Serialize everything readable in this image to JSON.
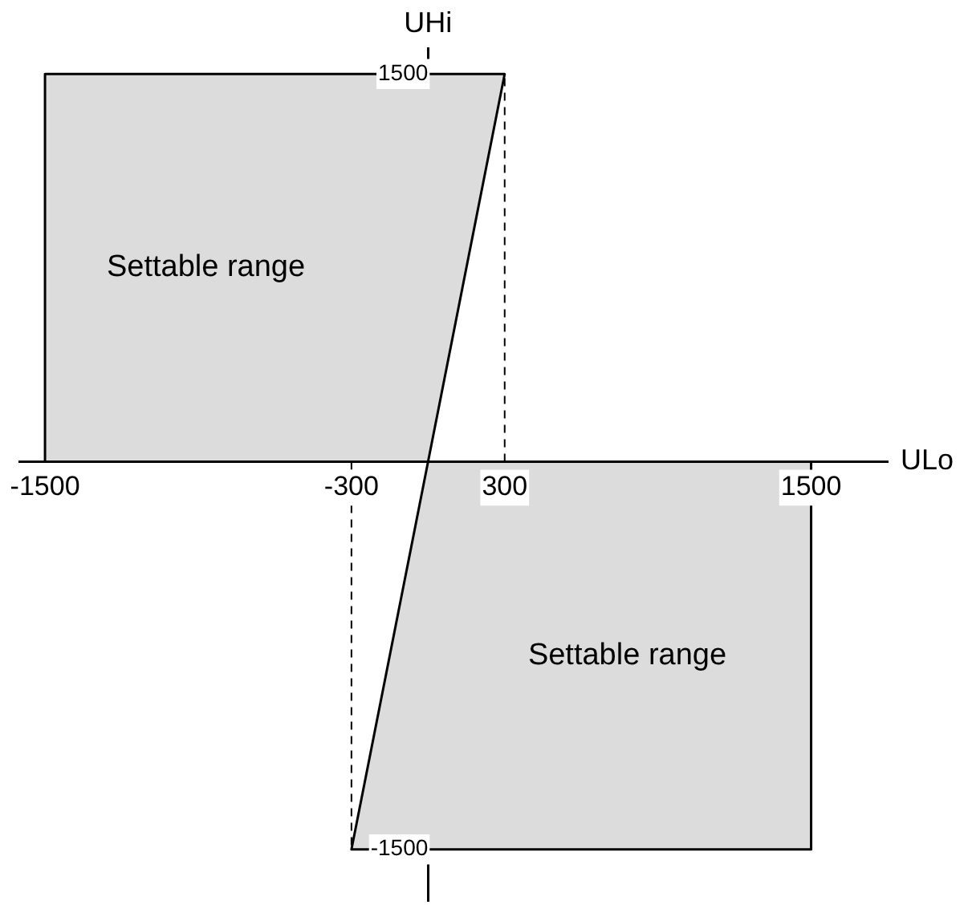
{
  "chart_data": {
    "type": "area",
    "xlabel": "ULo",
    "ylabel": "UHi",
    "xlim": [
      -1600,
      1800
    ],
    "ylim": [
      -1700,
      1600
    ],
    "xticks": [
      -1500,
      -300,
      300,
      1500
    ],
    "yticks": [
      -1500,
      1500
    ],
    "grid": false,
    "legend": false,
    "marker": "none",
    "series": [
      {
        "type": "area",
        "color": "#dcdcdc",
        "x": [
          -1500,
          -1500,
          300,
          0,
          -1500
        ],
        "values": [
          0,
          1500,
          1500,
          0,
          0
        ]
      },
      {
        "type": "area",
        "color": "#dcdcdc",
        "x": [
          0,
          1500,
          1500,
          -300,
          0
        ],
        "values": [
          0,
          0,
          -1500,
          -1500,
          0
        ]
      },
      {
        "type": "line",
        "color": "#000000",
        "line_style": "dashed",
        "x": [
          300,
          300
        ],
        "values": [
          0,
          1500
        ]
      },
      {
        "type": "line",
        "color": "#000000",
        "line_style": "dashed",
        "x": [
          -300,
          -300
        ],
        "values": [
          0,
          -1500
        ]
      }
    ],
    "annotations": [
      "Settable range",
      "Settable range"
    ]
  }
}
